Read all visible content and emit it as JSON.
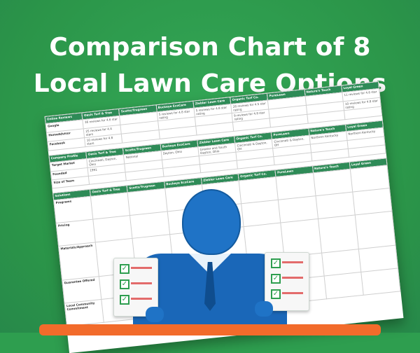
{
  "heading": {
    "line1": "Comparison Chart of 8",
    "line2": "Local Lawn Care Options"
  },
  "colors": {
    "background": "#2e9e4f",
    "table_header": "#2e8b57",
    "person": "#1f73c6",
    "bottom_bar": "#f26b2b"
  },
  "chart_table": {
    "header": [
      "Online Reviews",
      "Oasis Turf & Tree",
      "Scotts/Trugreen",
      "Buckeye EcoCare",
      "Ziebler Lawn Care",
      "Organic Turf Co.",
      "PureLawn",
      "Nature's Touch",
      "Loyal Green"
    ],
    "rows": [
      [
        "Google",
        "36 reviews for 4.6 star",
        "",
        "5 reviews for 4.8 star rating",
        "5 reviews for 4.8 star rating",
        "28 reviews for 4.5 star rating",
        "",
        "",
        "11 reviews for 4.6 star"
      ],
      [
        "HomeAdvisor",
        "25 reviews for 4.4 stars",
        "",
        "",
        "",
        "9 reviews for 4.8 star rating",
        "",
        "",
        "10 reviews for 4.8 star rating"
      ],
      [
        "Facebook",
        "10 reviews for 4.8 stars",
        "",
        "",
        "",
        "",
        "",
        "",
        ""
      ]
    ],
    "profile_header": [
      "Company Profile",
      "Oasis Turf & Tree",
      "Scotts/Trugreen",
      "Buckeye EcoCare",
      "Ziebler Lawn Care",
      "Organic Turf Co.",
      "PureLawn",
      "Nature's Touch",
      "Loyal Green"
    ],
    "profile_rows": [
      [
        "Target Market",
        "Cincinnati, Dayton, Ohio",
        "National",
        "Dayton, Ohio",
        "Greater and South Dayton, Ohio",
        "Cincinnati & Dayton, OH",
        "Cincinnati & Dayton, OH",
        "Northern Kentucky",
        "Northern Kentucky"
      ],
      [
        "Founded",
        "1991",
        "",
        "",
        "",
        "",
        "",
        "",
        ""
      ],
      [
        "Size of Team",
        "",
        "",
        "",
        "",
        "",
        "",
        "",
        ""
      ]
    ],
    "solutions_header": [
      "Solutions",
      "Oasis Turf & Tree",
      "Scotts/Trugreen",
      "Buckeye EcoCare",
      "Ziebler Lawn Care",
      "Organic Turf Co.",
      "PureLawn",
      "Nature's Touch",
      "Loyal Green"
    ],
    "solutions_rows": [
      [
        "Programs",
        "",
        "",
        "",
        "",
        "",
        "",
        "",
        ""
      ],
      [
        "Pricing",
        "",
        "",
        "",
        "",
        "",
        "",
        "",
        ""
      ],
      [
        "Materials/Approach",
        "",
        "",
        "",
        "",
        "",
        "",
        "",
        ""
      ]
    ],
    "extra_rows": [
      [
        "Guarantee Offered",
        "",
        "",
        "",
        "",
        "",
        "",
        "",
        ""
      ],
      [
        "Local Community Commitment",
        "",
        "",
        "",
        "",
        "",
        "",
        "",
        ""
      ]
    ]
  }
}
